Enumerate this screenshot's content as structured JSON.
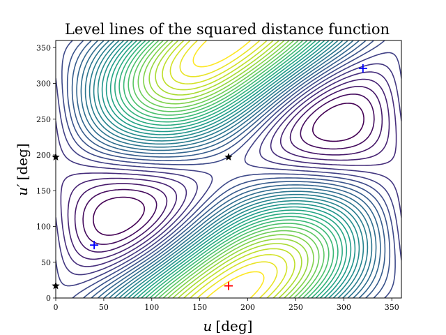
{
  "chart_data": {
    "type": "contour",
    "title": "Level lines of the squared distance function",
    "xlabel_var": "u",
    "xlabel_unit": "[deg]",
    "ylabel_var": "u′",
    "ylabel_unit": "[deg]",
    "xlim": [
      0,
      360
    ],
    "ylim": [
      0,
      360
    ],
    "x_ticks": [
      0,
      50,
      100,
      150,
      200,
      250,
      300,
      350
    ],
    "y_ticks": [
      0,
      50,
      100,
      150,
      200,
      250,
      300,
      350
    ],
    "colormap": "viridis",
    "grid": false,
    "levels": 32,
    "markers": [
      {
        "symbol": "plus",
        "color": "#ff0000",
        "x": 180,
        "y": 17
      },
      {
        "symbol": "plus",
        "color": "#0000ff",
        "x": 40,
        "y": 74
      },
      {
        "symbol": "plus",
        "color": "#0000ff",
        "x": 320,
        "y": 321
      },
      {
        "symbol": "star",
        "color": "#000000",
        "x": 180,
        "y": 197
      },
      {
        "symbol": "star",
        "color": "#000000",
        "x": 0,
        "y": 197
      },
      {
        "symbol": "star",
        "color": "#000000",
        "x": 0,
        "y": 17
      }
    ]
  }
}
